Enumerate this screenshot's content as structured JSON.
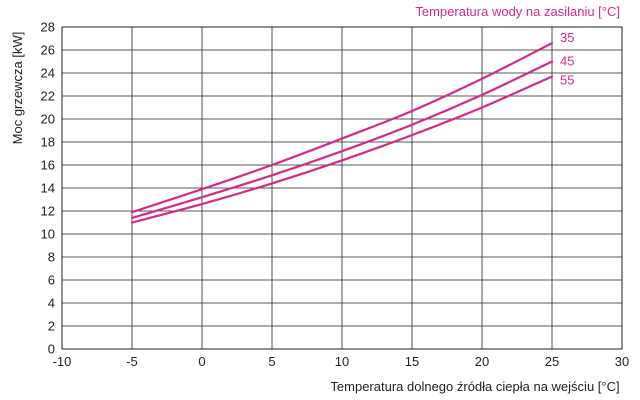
{
  "chart_data": {
    "type": "line",
    "title": "",
    "legend_title": "Temperatura wody na zasilaniu [°C]",
    "xlabel": "Temperatura dolnego źródła ciepła na wejściu [°C]",
    "ylabel": "Moc grzewcza [kW]",
    "xlim": [
      -10,
      30
    ],
    "ylim": [
      0,
      28
    ],
    "x_ticks": [
      -10,
      -5,
      0,
      5,
      10,
      15,
      20,
      25,
      30
    ],
    "y_ticks": [
      0,
      2,
      4,
      6,
      8,
      10,
      12,
      14,
      16,
      18,
      20,
      22,
      24,
      26,
      28
    ],
    "grid": true,
    "series_color": "#d42a8c",
    "series": [
      {
        "name": "35",
        "x": [
          -5,
          0,
          5,
          10,
          15,
          20,
          25
        ],
        "y": [
          11.9,
          13.9,
          16.0,
          18.3,
          20.7,
          23.5,
          26.6
        ]
      },
      {
        "name": "45",
        "x": [
          -5,
          0,
          5,
          10,
          15,
          20,
          25
        ],
        "y": [
          11.4,
          13.2,
          15.1,
          17.2,
          19.5,
          22.1,
          25.0
        ]
      },
      {
        "name": "55",
        "x": [
          -5,
          0,
          5,
          10,
          15,
          20,
          25
        ],
        "y": [
          11.0,
          12.6,
          14.4,
          16.4,
          18.6,
          21.0,
          23.7
        ]
      }
    ]
  }
}
